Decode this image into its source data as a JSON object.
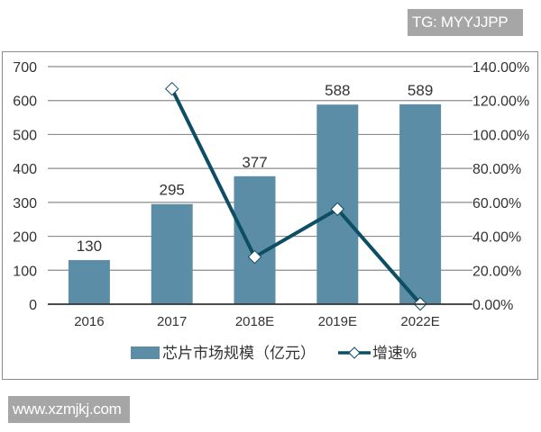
{
  "watermarks": {
    "top": "TG: MYYJJPP",
    "bottom": "www.xzmjkj.com"
  },
  "colors": {
    "bar": "#5b8ea6",
    "line": "#0e4e64",
    "grid": "#8c8c8c",
    "axis": "#333333",
    "text": "#333333",
    "watermark_bg": "#a6a6a6"
  },
  "legend": {
    "bar_label": "芯片市场规模（亿元）",
    "line_label": "增速%"
  },
  "chart_data": {
    "type": "bar+line",
    "title": "",
    "categories": [
      "2016",
      "2017",
      "2018E",
      "2019E",
      "2022E"
    ],
    "series": [
      {
        "name": "芯片市场规模（亿元）",
        "type": "bar",
        "axis": "left",
        "values": [
          130,
          295,
          377,
          588,
          589
        ],
        "data_labels": [
          "130",
          "295",
          "377",
          "588",
          "589"
        ]
      },
      {
        "name": "增速%",
        "type": "line",
        "axis": "right",
        "marker": "diamond-open",
        "values": [
          null,
          126.9,
          27.8,
          56.0,
          0.2
        ]
      }
    ],
    "left_axis": {
      "ylim": [
        0,
        700
      ],
      "ticks": [
        "0",
        "100",
        "200",
        "300",
        "400",
        "500",
        "600",
        "700"
      ]
    },
    "right_axis": {
      "ylim": [
        0,
        140
      ],
      "ticks": [
        "0.00%",
        "20.00%",
        "40.00%",
        "60.00%",
        "80.00%",
        "100.00%",
        "120.00%",
        "140.00%"
      ]
    },
    "xlabel": "",
    "ylabel": "",
    "grid": true,
    "legend_position": "bottom"
  }
}
